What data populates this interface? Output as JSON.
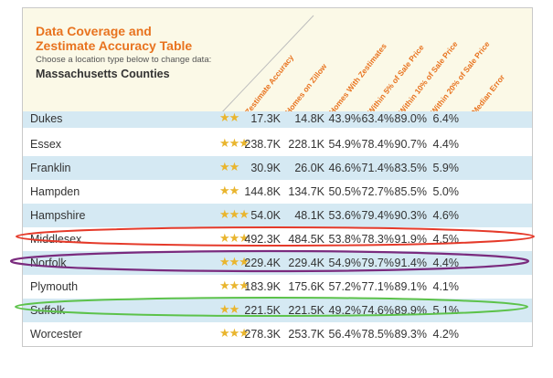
{
  "header": {
    "title_line1": "Data Coverage and",
    "title_line2": "Zestimate Accuracy Table",
    "subtitle": "Choose a location type below to change data:",
    "location": "Massachusetts Counties"
  },
  "columns": [
    "Zestimate Accuracy",
    "Homes on Zillow",
    "Homes With Zestimates",
    "Within 5% of Sale Price",
    "Within 10% of Sale Price",
    "Within 20% of Sale Price",
    "Median Error"
  ],
  "rows": [
    {
      "county": "Dukes",
      "stars": "★★",
      "homes": "17.3K",
      "with_z": "14.8K",
      "w5": "43.9%",
      "w10": "63.4%",
      "w20": "89.0%",
      "err": "6.4%"
    },
    {
      "county": "Essex",
      "stars": "★★★",
      "homes": "238.7K",
      "with_z": "228.1K",
      "w5": "54.9%",
      "w10": "78.4%",
      "w20": "90.7%",
      "err": "4.4%"
    },
    {
      "county": "Franklin",
      "stars": "★★",
      "homes": "30.9K",
      "with_z": "26.0K",
      "w5": "46.6%",
      "w10": "71.4%",
      "w20": "83.5%",
      "err": "5.9%"
    },
    {
      "county": "Hampden",
      "stars": "★★",
      "homes": "144.8K",
      "with_z": "134.7K",
      "w5": "50.5%",
      "w10": "72.7%",
      "w20": "85.5%",
      "err": "5.0%"
    },
    {
      "county": "Hampshire",
      "stars": "★★★",
      "homes": "54.0K",
      "with_z": "48.1K",
      "w5": "53.6%",
      "w10": "79.4%",
      "w20": "90.3%",
      "err": "4.6%"
    },
    {
      "county": "Middlesex",
      "stars": "★★★",
      "homes": "492.3K",
      "with_z": "484.5K",
      "w5": "53.8%",
      "w10": "78.3%",
      "w20": "91.9%",
      "err": "4.5%"
    },
    {
      "county": "Norfolk",
      "stars": "★★★",
      "homes": "229.4K",
      "with_z": "229.4K",
      "w5": "54.9%",
      "w10": "79.7%",
      "w20": "91.4%",
      "err": "4.4%"
    },
    {
      "county": "Plymouth",
      "stars": "★★★",
      "homes": "183.9K",
      "with_z": "175.6K",
      "w5": "57.2%",
      "w10": "77.1%",
      "w20": "89.1%",
      "err": "4.1%"
    },
    {
      "county": "Suffolk",
      "stars": "★★",
      "homes": "221.5K",
      "with_z": "221.5K",
      "w5": "49.2%",
      "w10": "74.6%",
      "w20": "89.9%",
      "err": "5.1%"
    },
    {
      "county": "Worcester",
      "stars": "★★★",
      "homes": "278.3K",
      "with_z": "253.7K",
      "w5": "56.4%",
      "w10": "78.5%",
      "w20": "89.3%",
      "err": "4.2%"
    }
  ],
  "highlight_colors": {
    "middlesex": "#e53a2a",
    "norfolk": "#7a2b7e",
    "suffolk": "#5cc24a"
  },
  "star_color": "#e9b52e",
  "accent_color": "#e8731f",
  "shade_color": "#d5e9f3"
}
